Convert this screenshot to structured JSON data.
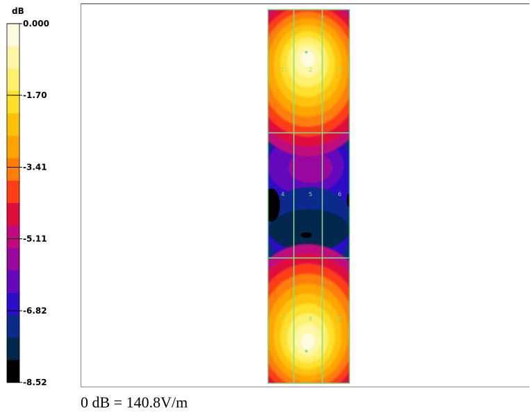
{
  "chart_data": {
    "type": "heatmap",
    "unit": "dB",
    "colorbar_ticks": [
      "0.000",
      "-1.70",
      "-3.41",
      "-5.11",
      "-6.82",
      "-8.52"
    ],
    "colorbar_values": [
      0.0,
      -1.7,
      -3.41,
      -5.11,
      -6.82,
      -8.52
    ],
    "colorbar_range": [
      -8.52,
      0.0
    ],
    "colorbar_levels": 15,
    "colors": [
      "#fffbe0",
      "#fff6a6",
      "#fff16e",
      "#ffe02a",
      "#ffc20a",
      "#ffa400",
      "#ff7e0a",
      "#ff3e14",
      "#e00c3c",
      "#c00a7e",
      "#98089e",
      "#6408bc",
      "#2c0cc6",
      "#0c2a8c",
      "#02284e",
      "#000000"
    ],
    "grid": {
      "rows": 3,
      "cols": 3
    },
    "point_labels": [
      "1",
      "2",
      "3",
      "4",
      "5",
      "6",
      "7",
      "8",
      "9"
    ],
    "hotspots": [
      {
        "name": "top-peak",
        "value_db": 0.0
      },
      {
        "name": "bottom-peak",
        "value_db": 0.0
      }
    ],
    "minima": [
      {
        "name": "center-min",
        "value_db": -8.52
      }
    ],
    "reference": "0 dB = 140.8V/m"
  },
  "caption": "0 dB = 140.8V/m"
}
